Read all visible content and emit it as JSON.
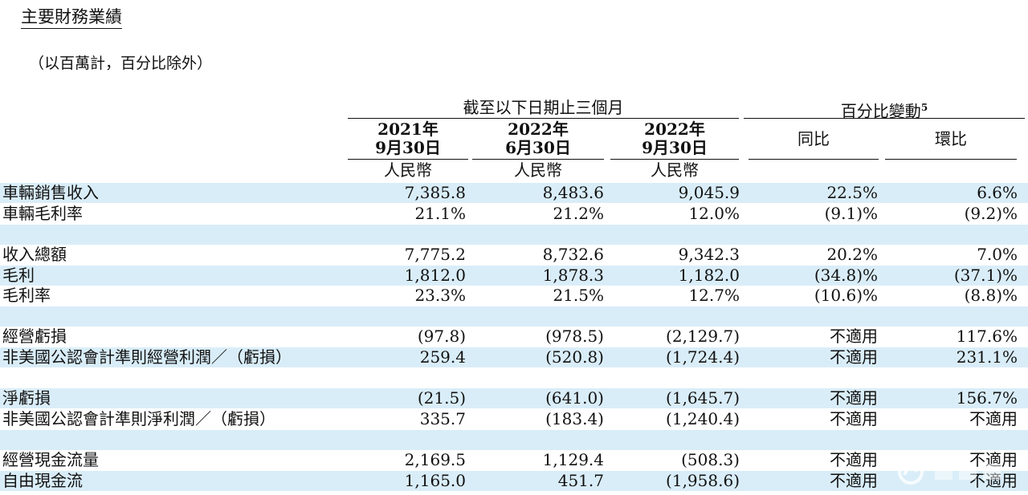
{
  "title": "主要財務業績",
  "subtitle": "（以百萬計，百分比除外）",
  "header": {
    "group1": "截至以下日期止三個月",
    "group2": "百分比變動",
    "group2_sup": "5",
    "col1_year": "2021年",
    "col1_date": "9月30日",
    "col1_unit": "人民幣",
    "col2_year": "2022年",
    "col2_date": "6月30日",
    "col2_unit": "人民幣",
    "col3_year": "2022年",
    "col3_date": "9月30日",
    "col3_unit": "人民幣",
    "col4": "同比",
    "col5": "環比"
  },
  "rows": [
    {
      "label": "車輛銷售收入",
      "c1": "7,385.8",
      "c2": "8,483.6",
      "c3": "9,045.9",
      "c4": "22.5%",
      "c5": "6.6%"
    },
    {
      "label": "車輛毛利率",
      "c1": "21.1%",
      "c2": "21.2%",
      "c3": "12.0%",
      "c4": "(9.1)%",
      "c5": "(9.2)%"
    },
    {
      "label": "收入總額",
      "c1": "7,775.2",
      "c2": "8,732.6",
      "c3": "9,342.3",
      "c4": "20.2%",
      "c5": "7.0%"
    },
    {
      "label": "毛利",
      "c1": "1,812.0",
      "c2": "1,878.3",
      "c3": "1,182.0",
      "c4": "(34.8)%",
      "c5": "(37.1)%"
    },
    {
      "label": "毛利率",
      "c1": "23.3%",
      "c2": "21.5%",
      "c3": "12.7%",
      "c4": "(10.6)%",
      "c5": "(8.8)%"
    },
    {
      "label": "經營虧損",
      "c1": "(97.8)",
      "c2": "(978.5)",
      "c3": "(2,129.7)",
      "c4": "不適用",
      "c5": "117.6%"
    },
    {
      "label": "非美國公認會計準則經營利潤／（虧損）",
      "c1": "259.4",
      "c2": "(520.8)",
      "c3": "(1,724.4)",
      "c4": "不適用",
      "c5": "231.1%"
    },
    {
      "label": "淨虧損",
      "c1": "(21.5)",
      "c2": "(641.0)",
      "c3": "(1,645.7)",
      "c4": "不適用",
      "c5": "156.7%"
    },
    {
      "label": "非美國公認會計準則淨利潤／（虧損）",
      "c1": "335.7",
      "c2": "(183.4)",
      "c3": "(1,240.4)",
      "c4": "不適用",
      "c5": "不適用"
    },
    {
      "label": "經營現金流量",
      "c1": "2,169.5",
      "c2": "1,129.4",
      "c3": "(508.3)",
      "c4": "不適用",
      "c5": "不適用"
    },
    {
      "label": "自由現金流",
      "c1": "1,165.0",
      "c2": "451.7",
      "c3": "(1,958.6)",
      "c4": "不適用",
      "c5": "不適用"
    }
  ]
}
